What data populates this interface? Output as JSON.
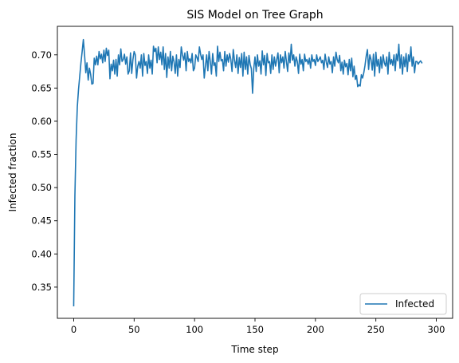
{
  "chart_data": {
    "type": "line",
    "title": "SIS Model on Tree Graph",
    "xlabel": "Time step",
    "ylabel": "Infected fraction",
    "xlim": [
      -13.5,
      313.5
    ],
    "ylim": [
      0.303,
      0.743
    ],
    "xticks": [
      0,
      50,
      100,
      150,
      200,
      250,
      300
    ],
    "yticks": [
      0.35,
      0.4,
      0.45,
      0.5,
      0.55,
      0.6,
      0.65,
      0.7
    ],
    "ytick_labels": [
      "0.35",
      "0.40",
      "0.45",
      "0.50",
      "0.55",
      "0.60",
      "0.65",
      "0.70"
    ],
    "grid": false,
    "legend": {
      "position": "lower-right",
      "entries": [
        "Infected"
      ]
    },
    "series": [
      {
        "name": "Infected",
        "color": "#1f77b4",
        "x_start": 0,
        "x_step": 1,
        "values": [
          0.322,
          0.488,
          0.572,
          0.622,
          0.648,
          0.668,
          0.688,
          0.705,
          0.723,
          0.7,
          0.673,
          0.688,
          0.662,
          0.68,
          0.671,
          0.656,
          0.657,
          0.695,
          0.685,
          0.698,
          0.685,
          0.705,
          0.694,
          0.701,
          0.688,
          0.707,
          0.69,
          0.71,
          0.699,
          0.707,
          0.664,
          0.686,
          0.676,
          0.692,
          0.671,
          0.693,
          0.668,
          0.7,
          0.685,
          0.709,
          0.69,
          0.693,
          0.701,
          0.686,
          0.697,
          0.671,
          0.676,
          0.703,
          0.672,
          0.693,
          0.705,
          0.7,
          0.665,
          0.683,
          0.69,
          0.68,
          0.7,
          0.668,
          0.702,
          0.684,
          0.69,
          0.672,
          0.7,
          0.68,
          0.692,
          0.671,
          0.713,
          0.705,
          0.71,
          0.688,
          0.712,
          0.693,
          0.704,
          0.685,
          0.712,
          0.678,
          0.702,
          0.666,
          0.697,
          0.68,
          0.705,
          0.676,
          0.698,
          0.69,
          0.672,
          0.7,
          0.668,
          0.693,
          0.681,
          0.712,
          0.7,
          0.692,
          0.703,
          0.676,
          0.705,
          0.69,
          0.694,
          0.688,
          0.702,
          0.676,
          0.68,
          0.7,
          0.696,
          0.69,
          0.712,
          0.701,
          0.693,
          0.7,
          0.665,
          0.683,
          0.7,
          0.676,
          0.705,
          0.69,
          0.671,
          0.702,
          0.684,
          0.688,
          0.668,
          0.713,
          0.69,
          0.704,
          0.691,
          0.693,
          0.676,
          0.705,
          0.683,
          0.7,
          0.689,
          0.702,
          0.693,
          0.675,
          0.708,
          0.692,
          0.681,
          0.7,
          0.672,
          0.696,
          0.681,
          0.702,
          0.668,
          0.704,
          0.678,
          0.697,
          0.671,
          0.699,
          0.686,
          0.679,
          0.642,
          0.68,
          0.697,
          0.675,
          0.7,
          0.683,
          0.691,
          0.671,
          0.706,
          0.685,
          0.699,
          0.669,
          0.702,
          0.688,
          0.69,
          0.672,
          0.7,
          0.678,
          0.697,
          0.683,
          0.693,
          0.703,
          0.673,
          0.7,
          0.688,
          0.697,
          0.68,
          0.705,
          0.69,
          0.675,
          0.703,
          0.688,
          0.716,
          0.692,
          0.7,
          0.683,
          0.697,
          0.69,
          0.672,
          0.701,
          0.686,
          0.693,
          0.676,
          0.701,
          0.69,
          0.693,
          0.686,
          0.695,
          0.68,
          0.7,
          0.69,
          0.693,
          0.684,
          0.7,
          0.69,
          0.693,
          0.697,
          0.688,
          0.692,
          0.678,
          0.701,
          0.689,
          0.681,
          0.697,
          0.686,
          0.69,
          0.673,
          0.697,
          0.683,
          0.704,
          0.693,
          0.688,
          0.699,
          0.676,
          0.689,
          0.671,
          0.692,
          0.682,
          0.687,
          0.67,
          0.693,
          0.676,
          0.695,
          0.667,
          0.683,
          0.663,
          0.669,
          0.652,
          0.655,
          0.653,
          0.67,
          0.665,
          0.673,
          0.684,
          0.698,
          0.708,
          0.678,
          0.7,
          0.693,
          0.677,
          0.701,
          0.668,
          0.704,
          0.683,
          0.693,
          0.673,
          0.697,
          0.68,
          0.7,
          0.688,
          0.683,
          0.697,
          0.671,
          0.704,
          0.686,
          0.693,
          0.684,
          0.7,
          0.676,
          0.701,
          0.691,
          0.716,
          0.68,
          0.7,
          0.671,
          0.697,
          0.682,
          0.702,
          0.675,
          0.7,
          0.69,
          0.712,
          0.683,
          0.697,
          0.673,
          0.69,
          0.69,
          0.686,
          0.689,
          0.691,
          0.688
        ]
      }
    ]
  }
}
